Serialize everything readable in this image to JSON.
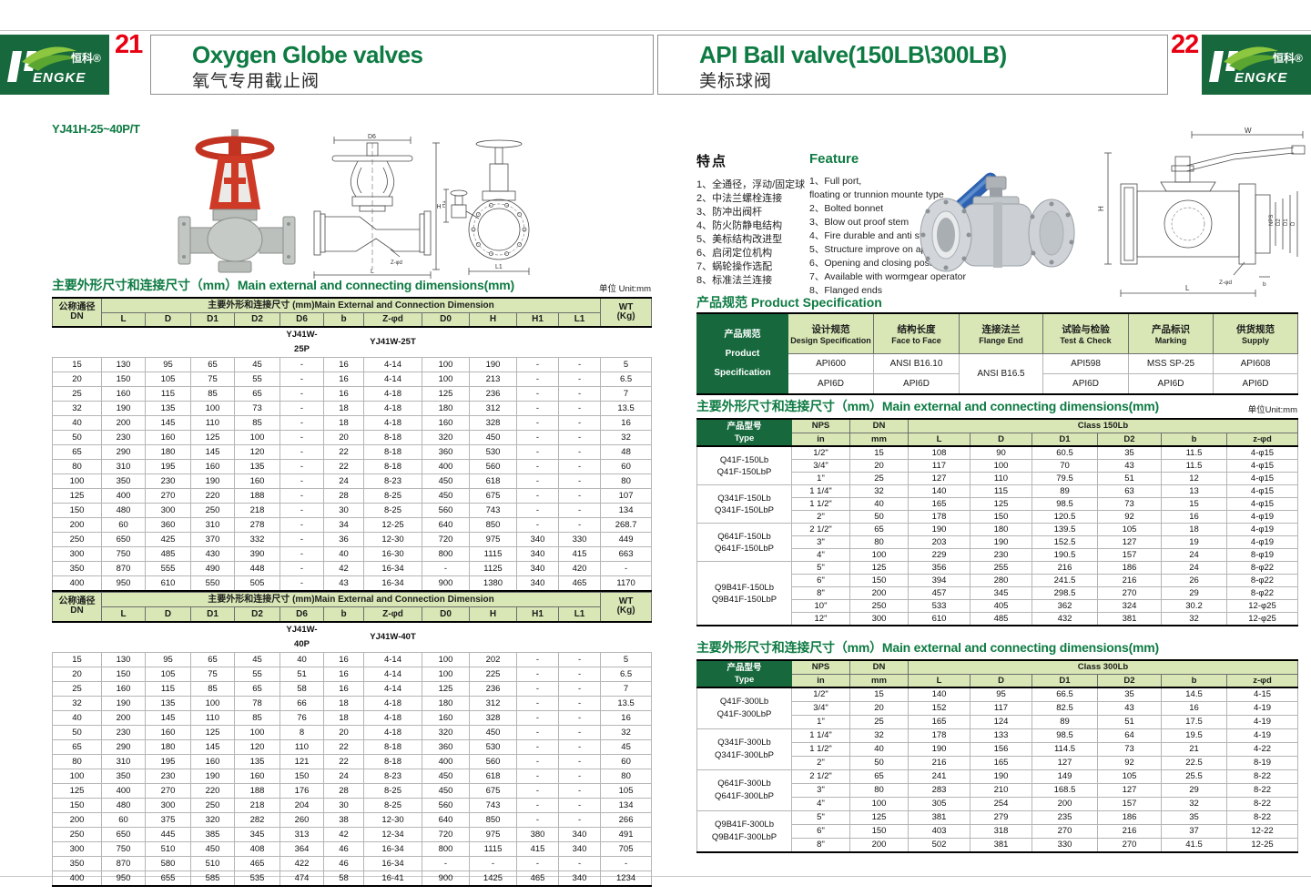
{
  "header": {
    "left": {
      "page_number": "21",
      "title": "Oxygen Globe valves",
      "subtitle": "氧气专用截止阀"
    },
    "right": {
      "page_number": "22",
      "title": "API Ball valve(150LB\\300LB)",
      "subtitle": "美标球阀"
    },
    "logo": {
      "zh": "恒科®",
      "en": "ENGKE"
    }
  },
  "left": {
    "model": "YJ41H-25~40P/T",
    "section_title": "主要外形尺寸和连接尺寸（mm）Main external and connecting dimensions(mm)",
    "unit": "单位 Unit:mm",
    "header": {
      "dn": "公称通径\nDN",
      "span": "主要外形和连接尺寸 (mm)Main External and Connection Dimension",
      "wt": "WT\n(Kg)",
      "cols": [
        "L",
        "D",
        "D1",
        "D2",
        "D6",
        "b",
        "Z-φd",
        "D0",
        "H",
        "H1",
        "L1"
      ]
    },
    "table1": {
      "variant_p": "YJ41W-25P",
      "variant_t": "YJ41W-25T",
      "rows": [
        [
          "15",
          "130",
          "95",
          "65",
          "45",
          "-",
          "16",
          "4-14",
          "100",
          "190",
          "-",
          "-",
          "5"
        ],
        [
          "20",
          "150",
          "105",
          "75",
          "55",
          "-",
          "16",
          "4-14",
          "100",
          "213",
          "-",
          "-",
          "6.5"
        ],
        [
          "25",
          "160",
          "115",
          "85",
          "65",
          "-",
          "16",
          "4-18",
          "125",
          "236",
          "-",
          "-",
          "7"
        ],
        [
          "32",
          "190",
          "135",
          "100",
          "73",
          "-",
          "18",
          "4-18",
          "180",
          "312",
          "-",
          "-",
          "13.5"
        ],
        [
          "40",
          "200",
          "145",
          "110",
          "85",
          "-",
          "18",
          "4-18",
          "160",
          "328",
          "-",
          "-",
          "16"
        ],
        [
          "50",
          "230",
          "160",
          "125",
          "100",
          "-",
          "20",
          "8-18",
          "320",
          "450",
          "-",
          "-",
          "32"
        ],
        [
          "65",
          "290",
          "180",
          "145",
          "120",
          "-",
          "22",
          "8-18",
          "360",
          "530",
          "-",
          "-",
          "48"
        ],
        [
          "80",
          "310",
          "195",
          "160",
          "135",
          "-",
          "22",
          "8-18",
          "400",
          "560",
          "-",
          "-",
          "60"
        ],
        [
          "100",
          "350",
          "230",
          "190",
          "160",
          "-",
          "24",
          "8-23",
          "450",
          "618",
          "-",
          "-",
          "80"
        ],
        [
          "125",
          "400",
          "270",
          "220",
          "188",
          "-",
          "28",
          "8-25",
          "450",
          "675",
          "-",
          "-",
          "107"
        ],
        [
          "150",
          "480",
          "300",
          "250",
          "218",
          "-",
          "30",
          "8-25",
          "560",
          "743",
          "-",
          "-",
          "134"
        ],
        [
          "200",
          "60",
          "360",
          "310",
          "278",
          "-",
          "34",
          "12-25",
          "640",
          "850",
          "-",
          "-",
          "268.7"
        ],
        [
          "250",
          "650",
          "425",
          "370",
          "332",
          "-",
          "36",
          "12-30",
          "720",
          "975",
          "340",
          "330",
          "449"
        ],
        [
          "300",
          "750",
          "485",
          "430",
          "390",
          "-",
          "40",
          "16-30",
          "800",
          "1115",
          "340",
          "415",
          "663"
        ],
        [
          "350",
          "870",
          "555",
          "490",
          "448",
          "-",
          "42",
          "16-34",
          "-",
          "1125",
          "340",
          "420",
          "-"
        ],
        [
          "400",
          "950",
          "610",
          "550",
          "505",
          "-",
          "43",
          "16-34",
          "900",
          "1380",
          "340",
          "465",
          "1170"
        ]
      ]
    },
    "table2": {
      "variant_p": "YJ41W-40P",
      "variant_t": "YJ41W-40T",
      "rows": [
        [
          "15",
          "130",
          "95",
          "65",
          "45",
          "40",
          "16",
          "4-14",
          "100",
          "202",
          "-",
          "-",
          "5"
        ],
        [
          "20",
          "150",
          "105",
          "75",
          "55",
          "51",
          "16",
          "4-14",
          "100",
          "225",
          "-",
          "-",
          "6.5"
        ],
        [
          "25",
          "160",
          "115",
          "85",
          "65",
          "58",
          "16",
          "4-14",
          "125",
          "236",
          "-",
          "-",
          "7"
        ],
        [
          "32",
          "190",
          "135",
          "100",
          "78",
          "66",
          "18",
          "4-18",
          "180",
          "312",
          "-",
          "-",
          "13.5"
        ],
        [
          "40",
          "200",
          "145",
          "110",
          "85",
          "76",
          "18",
          "4-18",
          "160",
          "328",
          "-",
          "-",
          "16"
        ],
        [
          "50",
          "230",
          "160",
          "125",
          "100",
          "8",
          "20",
          "4-18",
          "320",
          "450",
          "-",
          "-",
          "32"
        ],
        [
          "65",
          "290",
          "180",
          "145",
          "120",
          "110",
          "22",
          "8-18",
          "360",
          "530",
          "-",
          "-",
          "45"
        ],
        [
          "80",
          "310",
          "195",
          "160",
          "135",
          "121",
          "22",
          "8-18",
          "400",
          "560",
          "-",
          "-",
          "60"
        ],
        [
          "100",
          "350",
          "230",
          "190",
          "160",
          "150",
          "24",
          "8-23",
          "450",
          "618",
          "-",
          "-",
          "80"
        ],
        [
          "125",
          "400",
          "270",
          "220",
          "188",
          "176",
          "28",
          "8-25",
          "450",
          "675",
          "-",
          "-",
          "105"
        ],
        [
          "150",
          "480",
          "300",
          "250",
          "218",
          "204",
          "30",
          "8-25",
          "560",
          "743",
          "-",
          "-",
          "134"
        ],
        [
          "200",
          "60",
          "375",
          "320",
          "282",
          "260",
          "38",
          "12-30",
          "640",
          "850",
          "-",
          "-",
          "266"
        ],
        [
          "250",
          "650",
          "445",
          "385",
          "345",
          "313",
          "42",
          "12-34",
          "720",
          "975",
          "380",
          "340",
          "491"
        ],
        [
          "300",
          "750",
          "510",
          "450",
          "408",
          "364",
          "46",
          "16-34",
          "800",
          "1115",
          "415",
          "340",
          "705"
        ],
        [
          "350",
          "870",
          "580",
          "510",
          "465",
          "422",
          "46",
          "16-34",
          "-",
          "-",
          "-",
          "-",
          "-"
        ],
        [
          "400",
          "950",
          "655",
          "585",
          "535",
          "474",
          "58",
          "16-41",
          "900",
          "1425",
          "465",
          "340",
          "1234"
        ]
      ]
    },
    "drawing": {
      "dim_d6": "D6",
      "dim_h": "H",
      "dim_l": "L",
      "dim_zd": "Z-φd",
      "dim_h1": "H1",
      "dim_l1": "L1"
    }
  },
  "right": {
    "features_zh": {
      "title": "特点",
      "items": [
        "1、全通径，浮动/固定球",
        "2、中法兰螺栓连接",
        "3、防冲出阀杆",
        "4、防火防静电结构",
        "5、美标结构改进型",
        "6、启闭定位机构",
        "7、蜗轮操作选配",
        "8、标准法兰连接"
      ]
    },
    "features_en": {
      "title": "Feature",
      "items": [
        "1、Full port,\nfloating or trunnion mounte type",
        "2、Bolted bonnet",
        "3、Blow out proof stem",
        "4、Fire durable and anti static safety",
        "5、Structure improve on api",
        "6、Opening and closing position",
        "7、Available with wormgear operator",
        "8、Flanged ends"
      ]
    },
    "spec": {
      "title": "产品规范  Product Specification",
      "corner": "产品规范\nProduct\nSpecification",
      "headers": [
        {
          "zh": "设计规范",
          "en": "Design Specification"
        },
        {
          "zh": "结构长度",
          "en": "Face to Face"
        },
        {
          "zh": "连接法兰",
          "en": "Flange End"
        },
        {
          "zh": "试验与检验",
          "en": "Test & Check"
        },
        {
          "zh": "产品标识",
          "en": "Marking"
        },
        {
          "zh": "供货规范",
          "en": "Supply"
        }
      ],
      "row1": [
        "API600",
        "ANSI B16.10",
        "API598",
        "MSS SP-25",
        "API608"
      ],
      "flange": "ANSI B16.5",
      "row2": [
        "API6D",
        "API6D",
        "API6D",
        "API6D",
        "API6D"
      ]
    },
    "dims150": {
      "title": "主要外形尺寸和连接尺寸（mm）Main external and connecting dimensions(mm)",
      "unit": "单位Unit:mm",
      "corner": "产品型号\nType",
      "nps": "NPS",
      "dn": "DN",
      "in": "in",
      "mm": "mm",
      "class_label": "Class 150Lb",
      "cols": [
        "L",
        "D",
        "D1",
        "D2",
        "b",
        "z-φd"
      ],
      "groups": [
        {
          "type": "Q41F-150Lb\nQ41F-150LbP",
          "rows": [
            [
              "1/2\"",
              "15",
              "108",
              "90",
              "60.5",
              "35",
              "11.5",
              "4-φ15"
            ],
            [
              "3/4\"",
              "20",
              "117",
              "100",
              "70",
              "43",
              "11.5",
              "4-φ15"
            ],
            [
              "1\"",
              "25",
              "127",
              "110",
              "79.5",
              "51",
              "12",
              "4-φ15"
            ]
          ]
        },
        {
          "type": "Q341F-150Lb\nQ341F-150LbP",
          "rows": [
            [
              "1 1/4\"",
              "32",
              "140",
              "115",
              "89",
              "63",
              "13",
              "4-φ15"
            ],
            [
              "1 1/2\"",
              "40",
              "165",
              "125",
              "98.5",
              "73",
              "15",
              "4-φ15"
            ],
            [
              "2\"",
              "50",
              "178",
              "150",
              "120.5",
              "92",
              "16",
              "4-φ19"
            ]
          ]
        },
        {
          "type": "Q641F-150Lb\nQ641F-150LbP",
          "rows": [
            [
              "2 1/2\"",
              "65",
              "190",
              "180",
              "139.5",
              "105",
              "18",
              "4-φ19"
            ],
            [
              "3\"",
              "80",
              "203",
              "190",
              "152.5",
              "127",
              "19",
              "4-φ19"
            ],
            [
              "4\"",
              "100",
              "229",
              "230",
              "190.5",
              "157",
              "24",
              "8-φ19"
            ]
          ]
        },
        {
          "type": "Q9B41F-150Lb\nQ9B41F-150LbP",
          "rows": [
            [
              "5\"",
              "125",
              "356",
              "255",
              "216",
              "186",
              "24",
              "8-φ22"
            ],
            [
              "6\"",
              "150",
              "394",
              "280",
              "241.5",
              "216",
              "26",
              "8-φ22"
            ],
            [
              "8\"",
              "200",
              "457",
              "345",
              "298.5",
              "270",
              "29",
              "8-φ22"
            ],
            [
              "10\"",
              "250",
              "533",
              "405",
              "362",
              "324",
              "30.2",
              "12-φ25"
            ],
            [
              "12\"",
              "300",
              "610",
              "485",
              "432",
              "381",
              "32",
              "12-φ25"
            ]
          ]
        }
      ]
    },
    "dims300": {
      "title": "主要外形尺寸和连接尺寸（mm）Main external and connecting dimensions(mm)",
      "corner": "产品型号\nType",
      "nps": "NPS",
      "dn": "DN",
      "in": "in",
      "mm": "mm",
      "class_label": "Class 300Lb",
      "cols": [
        "L",
        "D",
        "D1",
        "D2",
        "b",
        "z-φd"
      ],
      "groups": [
        {
          "type": "Q41F-300Lb\nQ41F-300LbP",
          "rows": [
            [
              "1/2\"",
              "15",
              "140",
              "95",
              "66.5",
              "35",
              "14.5",
              "4-15"
            ],
            [
              "3/4\"",
              "20",
              "152",
              "117",
              "82.5",
              "43",
              "16",
              "4-19"
            ],
            [
              "1\"",
              "25",
              "165",
              "124",
              "89",
              "51",
              "17.5",
              "4-19"
            ]
          ]
        },
        {
          "type": "Q341F-300Lb\nQ341F-300LbP",
          "rows": [
            [
              "1 1/4\"",
              "32",
              "178",
              "133",
              "98.5",
              "64",
              "19.5",
              "4-19"
            ],
            [
              "1 1/2\"",
              "40",
              "190",
              "156",
              "114.5",
              "73",
              "21",
              "4-22"
            ],
            [
              "2\"",
              "50",
              "216",
              "165",
              "127",
              "92",
              "22.5",
              "8-19"
            ]
          ]
        },
        {
          "type": "Q641F-300Lb\nQ641F-300LbP",
          "rows": [
            [
              "2 1/2\"",
              "65",
              "241",
              "190",
              "149",
              "105",
              "25.5",
              "8-22"
            ],
            [
              "3\"",
              "80",
              "283",
              "210",
              "168.5",
              "127",
              "29",
              "8-22"
            ],
            [
              "4\"",
              "100",
              "305",
              "254",
              "200",
              "157",
              "32",
              "8-22"
            ]
          ]
        },
        {
          "type": "Q9B41F-300Lb\nQ9B41F-300LbP",
          "rows": [
            [
              "5\"",
              "125",
              "381",
              "279",
              "235",
              "186",
              "35",
              "8-22"
            ],
            [
              "6\"",
              "150",
              "403",
              "318",
              "270",
              "216",
              "37",
              "12-22"
            ],
            [
              "8\"",
              "200",
              "502",
              "381",
              "330",
              "270",
              "41.5",
              "12-25"
            ]
          ]
        }
      ]
    },
    "drawing": {
      "dim_w": "W",
      "dim_h": "H",
      "dim_l": "L",
      "dim_b": "b",
      "dim_zd": "Z-φd",
      "stack": [
        "NPS",
        "D2",
        "D1",
        "D"
      ]
    }
  }
}
